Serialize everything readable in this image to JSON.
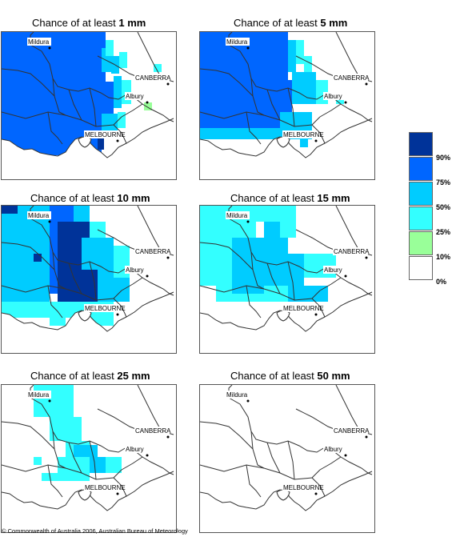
{
  "panels": [
    {
      "title_prefix": "Chance of at least ",
      "amount": "1 mm",
      "levels": [
        "90",
        "75",
        "50",
        "25",
        "10"
      ]
    },
    {
      "title_prefix": "Chance of at least ",
      "amount": "5 mm",
      "levels": [
        "75",
        "50",
        "25"
      ]
    },
    {
      "title_prefix": "Chance of at least ",
      "amount": "10 mm",
      "levels": [
        "90",
        "75",
        "50",
        "25"
      ]
    },
    {
      "title_prefix": "Chance of at least ",
      "amount": "15 mm",
      "levels": [
        "50",
        "25"
      ]
    },
    {
      "title_prefix": "Chance of at least ",
      "amount": "25 mm",
      "levels": [
        "50",
        "25"
      ]
    },
    {
      "title_prefix": "Chance of at least ",
      "amount": "50 mm",
      "levels": []
    }
  ],
  "places": {
    "mildura": "Mildura",
    "canberra": "CANBERRA",
    "albury": "Albury",
    "melbourne": "MELBOURNE"
  },
  "legend": {
    "labels": [
      "90%",
      "75%",
      "50%",
      "25%",
      "10%",
      "0%"
    ],
    "colors": [
      "#003399",
      "#0066ff",
      "#00ccff",
      "#33ffff",
      "#99ff99",
      "#ffffff"
    ]
  },
  "copyright": "© Commonwealth of Australia 2006, Australian Bureau of Meteorology"
}
